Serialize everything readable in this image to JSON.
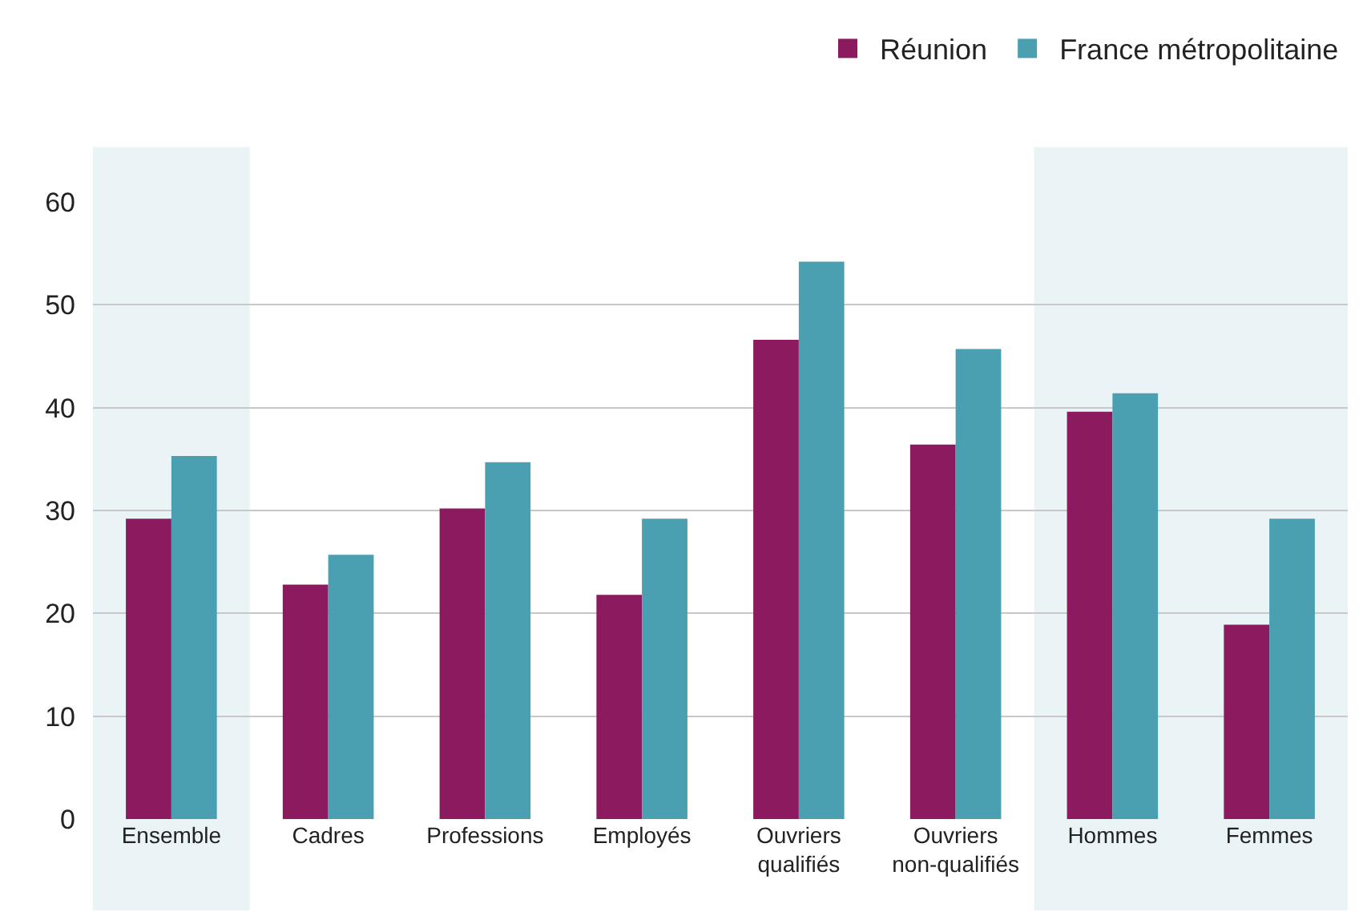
{
  "chart_data": {
    "type": "bar",
    "categories": [
      "Ensemble",
      "Cadres",
      "Professions",
      "Employés",
      "Ouvriers\nqualifiés",
      "Ouvriers\nnon-qualifiés",
      "Hommes",
      "Femmes"
    ],
    "series": [
      {
        "name": "Réunion",
        "color": "#8b1a5e",
        "values": [
          29.2,
          22.8,
          30.2,
          21.8,
          46.6,
          36.4,
          39.6,
          18.9
        ]
      },
      {
        "name": "France métropolitaine",
        "color": "#4aa0b0",
        "values": [
          35.3,
          25.7,
          34.7,
          29.2,
          54.2,
          45.7,
          41.4,
          29.2
        ]
      }
    ],
    "ylim": [
      0,
      60
    ],
    "yticks": [
      0,
      10,
      20,
      30,
      40,
      50,
      60
    ],
    "grid": "y",
    "legend": "top right",
    "bands": [
      {
        "axis": "x",
        "from": "Ensemble",
        "to": "Ensemble",
        "color": "#eaf4f6"
      },
      {
        "axis": "x",
        "from": "Hommes",
        "to": "Femmes",
        "color": "#eaf4f6"
      }
    ]
  }
}
